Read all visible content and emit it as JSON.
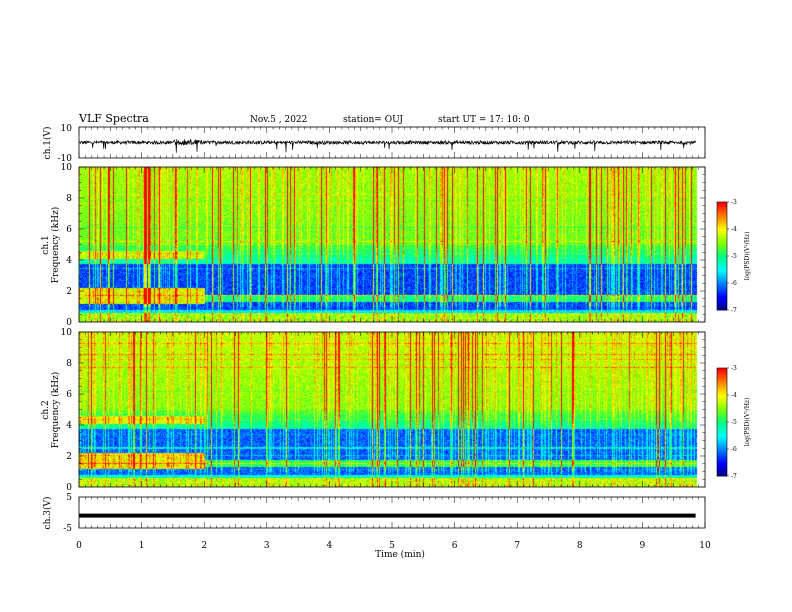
{
  "header": {
    "title": "VLF Spectra",
    "date": "Nov.5  , 2022",
    "station": "station= OUJ",
    "start": "start  UT  =   17: 10: 0"
  },
  "chart_data": [
    {
      "type": "line",
      "panel": "ch1-waveform",
      "ylabel": "ch.1(V)",
      "ylim": [
        -10,
        10
      ],
      "y_ticks": [
        "10",
        "-10"
      ],
      "xlim": [
        0,
        10
      ],
      "description_values": "waveform centered near 0 V with impulsive spikes",
      "baseline": 0
    },
    {
      "type": "heatmap",
      "panel": "ch1-spectrogram",
      "ylabel": "ch.1\nFrequency  (kHz)",
      "ylabel_line1": "ch.1",
      "ylabel_line2": "Frequency  (kHz)",
      "ylim": [
        0,
        10
      ],
      "y_ticks": [
        "0",
        "2",
        "4",
        "6",
        "8",
        "10"
      ],
      "xlim": [
        0,
        10
      ],
      "colorbar": {
        "label": "log(PSD)(V²/Hz)",
        "range": [
          -7,
          -3
        ],
        "ticks": [
          "-3",
          "-4",
          "-5",
          "-6",
          "-7"
        ]
      }
    },
    {
      "type": "heatmap",
      "panel": "ch2-spectrogram",
      "ylabel_line1": "ch.2",
      "ylabel_line2": "Frequency  (kHz)",
      "ylim": [
        0,
        10
      ],
      "y_ticks": [
        "0",
        "2",
        "4",
        "6",
        "8",
        "10"
      ],
      "xlim": [
        0,
        10
      ],
      "colorbar": {
        "label": "log(PSD)(V²/Hz)",
        "range": [
          -7,
          -3
        ],
        "ticks": [
          "-3",
          "-4",
          "-5",
          "-6",
          "-7"
        ]
      }
    },
    {
      "type": "line",
      "panel": "ch3-waveform",
      "ylabel": "ch.3(V)",
      "ylim": [
        -5,
        5
      ],
      "y_ticks": [
        "5",
        "-5"
      ],
      "xlim": [
        0,
        10
      ],
      "baseline": -1
    }
  ],
  "x_axis": {
    "label": "Time  (min)",
    "ticks": [
      "0",
      "1",
      "2",
      "3",
      "4",
      "5",
      "6",
      "7",
      "8",
      "9",
      "10"
    ]
  },
  "colors": {
    "colormap": [
      "#000080",
      "#0000ff",
      "#0080ff",
      "#00ffff",
      "#00ff80",
      "#80ff00",
      "#ffff00",
      "#ff8000",
      "#ff0000",
      "#ffffff"
    ]
  }
}
